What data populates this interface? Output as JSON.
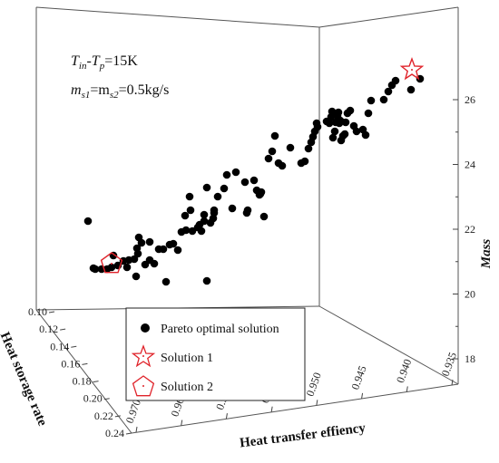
{
  "chart_data": {
    "type": "scatter",
    "annotation": {
      "line1_main": "T",
      "line1_sub_a": "in",
      "line1_mid": "-T",
      "line1_sub_b": "p",
      "line1_tail": "=15K",
      "line2_main_a": "m",
      "line2_sub_a": "s1",
      "line2_mid": "=m",
      "line2_sub_b": "s2",
      "line2_tail": "=0.5kg/s"
    },
    "axes": {
      "x": {
        "label": "Heat transfer effiency",
        "ticks": [
          "0.970",
          "0.965",
          "0.960",
          "0.955",
          "0.950",
          "0.945",
          "0.940",
          "0.935"
        ]
      },
      "y": {
        "label": "Heat storage rate",
        "ticks": [
          "0.10",
          "0.12",
          "0.14",
          "0.16",
          "0.18",
          "0.20",
          "0.22",
          "0.24"
        ]
      },
      "z": {
        "label": "Mass",
        "ticks": [
          "18",
          "20",
          "22",
          "24",
          "26"
        ]
      }
    },
    "legend": {
      "position": "bottom-center",
      "entries": [
        {
          "label": "Pareto optimal solution",
          "marker": "filled-circle"
        },
        {
          "label": "Solution 1",
          "marker": "star"
        },
        {
          "label": "Solution 2",
          "marker": "pentagon"
        }
      ]
    },
    "pareto_points": [
      [
        97,
        244
      ],
      [
        103,
        296
      ],
      [
        105,
        297
      ],
      [
        112,
        297
      ],
      [
        118,
        297
      ],
      [
        123,
        295
      ],
      [
        125,
        282
      ],
      [
        130,
        293
      ],
      [
        136,
        288
      ],
      [
        140,
        295
      ],
      [
        142,
        287
      ],
      [
        148,
        286
      ],
      [
        150,
        305
      ],
      [
        151,
        274
      ],
      [
        152,
        280
      ],
      [
        153,
        262
      ],
      [
        156,
        268
      ],
      [
        160,
        292
      ],
      [
        165,
        267
      ],
      [
        165,
        287
      ],
      [
        170,
        291
      ],
      [
        175,
        275
      ],
      [
        180,
        275
      ],
      [
        183,
        311
      ],
      [
        187,
        270
      ],
      [
        191,
        269
      ],
      [
        196,
        276
      ],
      [
        200,
        256
      ],
      [
        204,
        238
      ],
      [
        205,
        254
      ],
      [
        209,
        217
      ],
      [
        210,
        232
      ],
      [
        212,
        255
      ],
      [
        218,
        251
      ],
      [
        220,
        248
      ],
      [
        222,
        255
      ],
      [
        225,
        244
      ],
      [
        225,
        237
      ],
      [
        228,
        207
      ],
      [
        228,
        310
      ],
      [
        232,
        246
      ],
      [
        235,
        241
      ],
      [
        236,
        235
      ],
      [
        236,
        232
      ],
      [
        240,
        217
      ],
      [
        247,
        208
      ],
      [
        250,
        193
      ],
      [
        256,
        230
      ],
      [
        260,
        190
      ],
      [
        270,
        201
      ],
      [
        272,
        235
      ],
      [
        273,
        232
      ],
      [
        280,
        199
      ],
      [
        283,
        210
      ],
      [
        288,
        212
      ],
      [
        287,
        214
      ],
      [
        286,
        215
      ],
      [
        291,
        239
      ],
      [
        296,
        175
      ],
      [
        300,
        167
      ],
      [
        303,
        150
      ],
      [
        307,
        180
      ],
      [
        311,
        183
      ],
      [
        320,
        163
      ],
      [
        332,
        180
      ],
      [
        336,
        178
      ],
      [
        340,
        164
      ],
      [
        343,
        157
      ],
      [
        345,
        151
      ],
      [
        347,
        145
      ],
      [
        349,
        136
      ],
      [
        350,
        140
      ],
      [
        360,
        134
      ],
      [
        363,
        136
      ],
      [
        365,
        129
      ],
      [
        366,
        123
      ],
      [
        367,
        152
      ],
      [
        369,
        145
      ],
      [
        370,
        135
      ],
      [
        372,
        128
      ],
      [
        373,
        124
      ],
      [
        374,
        136
      ],
      [
        375,
        133
      ],
      [
        376,
        155
      ],
      [
        378,
        150
      ],
      [
        380,
        148
      ],
      [
        381,
        135
      ],
      [
        383,
        125
      ],
      [
        386,
        122
      ],
      [
        390,
        139
      ],
      [
        393,
        145
      ],
      [
        400,
        143
      ],
      [
        403,
        149
      ],
      [
        406,
        125
      ],
      [
        409,
        111
      ],
      [
        423,
        110
      ],
      [
        428,
        101
      ],
      [
        432,
        94
      ],
      [
        436,
        89
      ],
      [
        453,
        99
      ],
      [
        463,
        87
      ]
    ],
    "solution1_marker": [
      454,
      77
    ],
    "solution2_marker": [
      123,
      291
    ]
  }
}
